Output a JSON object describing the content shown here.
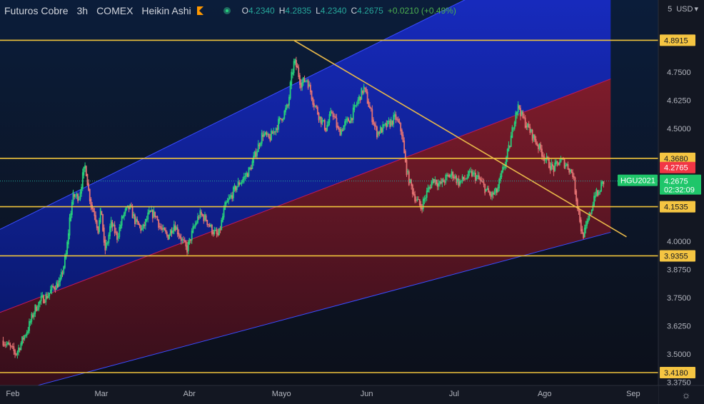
{
  "header": {
    "symbol": "Futuros Cobre",
    "interval": "3h",
    "exchange": "COMEX",
    "chart_style": "Heikin Ashi",
    "ohlc": {
      "o_label": "O",
      "o_value": "4.2340",
      "h_label": "H",
      "h_value": "4.2835",
      "l_label": "L",
      "l_value": "4.2340",
      "c_label": "C",
      "c_value": "4.2675",
      "change": "+0.0210 (+0.49%)"
    }
  },
  "currency": {
    "tick": "5",
    "label": "USD",
    "chevron": "▾"
  },
  "colors": {
    "background": "#131722",
    "up_candle": "#26d07c",
    "down_candle": "#e57373",
    "horizontal_line": "#f0c33c",
    "trend_line": "#e8b84a",
    "channel_upper": "#1b2fd6",
    "channel_lower": "#8b1c2a",
    "price_tag": "#f5c542",
    "current_price_tag": "#1fc66a",
    "last_price_tag": "#f23645"
  },
  "chart_data": {
    "type": "candlestick",
    "style": "Heikin Ashi",
    "y_axis": {
      "min": 3.375,
      "max": 5.0,
      "tick_labels": [
        "4.7500",
        "4.6250",
        "4.5000",
        "4.0000",
        "3.8750",
        "3.7500",
        "3.6250",
        "3.5000",
        "3.3750"
      ],
      "tick_values": [
        4.75,
        4.625,
        4.5,
        4.0,
        3.875,
        3.75,
        3.625,
        3.5,
        3.375
      ]
    },
    "x_axis": {
      "labels": [
        "Feb",
        "Mar",
        "Abr",
        "Mayo",
        "Jun",
        "Jul",
        "Ago",
        "Sep"
      ],
      "label_days": [
        0,
        28,
        56,
        84,
        112,
        140,
        168,
        196
      ]
    },
    "horizontal_levels": [
      {
        "value": 4.8915,
        "label": "4.8915"
      },
      {
        "value": 4.368,
        "label": "4.3680"
      },
      {
        "value": 4.1535,
        "label": "4.1535"
      },
      {
        "value": 3.9355,
        "label": "3.9355"
      },
      {
        "value": 3.418,
        "label": "3.4180"
      }
    ],
    "trend_line": {
      "from": {
        "day": 92,
        "value": 4.89
      },
      "to": {
        "day": 197,
        "value": 4.02
      }
    },
    "channel": {
      "upper": {
        "from": {
          "day": 0,
          "value": 4.06
        },
        "to": {
          "day": 192,
          "value": 5.39
        }
      },
      "mid": {
        "from": {
          "day": 0,
          "value": 3.69
        },
        "to": {
          "day": 192,
          "value": 4.72
        }
      },
      "lower": {
        "from": {
          "day": 0,
          "value": 3.32
        },
        "to": {
          "day": 192,
          "value": 4.04
        }
      },
      "end_day": 192
    },
    "current_price": {
      "value": 4.2675,
      "label": "4.2675",
      "symbol": "HGU2021",
      "countdown": "02:32:09"
    },
    "last_price": {
      "value": 4.2765,
      "label": "4.2765"
    },
    "price_path": [
      [
        0,
        3.56
      ],
      [
        2,
        3.53
      ],
      [
        4,
        3.5
      ],
      [
        6,
        3.56
      ],
      [
        8,
        3.62
      ],
      [
        10,
        3.7
      ],
      [
        12,
        3.74
      ],
      [
        14,
        3.76
      ],
      [
        16,
        3.8
      ],
      [
        18,
        3.82
      ],
      [
        20,
        3.95
      ],
      [
        21,
        4.1
      ],
      [
        22,
        4.2
      ],
      [
        24,
        4.2
      ],
      [
        25,
        4.28
      ],
      [
        26,
        4.34
      ],
      [
        27,
        4.22
      ],
      [
        28,
        4.15
      ],
      [
        29,
        4.12
      ],
      [
        30,
        4.05
      ],
      [
        31,
        4.15
      ],
      [
        32,
        3.95
      ],
      [
        33,
        4.0
      ],
      [
        34,
        4.08
      ],
      [
        35,
        4.05
      ],
      [
        36,
        4.02
      ],
      [
        38,
        4.12
      ],
      [
        40,
        4.15
      ],
      [
        42,
        4.08
      ],
      [
        44,
        4.05
      ],
      [
        46,
        4.12
      ],
      [
        48,
        4.12
      ],
      [
        50,
        4.05
      ],
      [
        52,
        4.02
      ],
      [
        54,
        4.08
      ],
      [
        56,
        4.02
      ],
      [
        58,
        3.96
      ],
      [
        60,
        4.05
      ],
      [
        62,
        4.12
      ],
      [
        64,
        4.1
      ],
      [
        66,
        4.05
      ],
      [
        68,
        4.02
      ],
      [
        70,
        4.15
      ],
      [
        72,
        4.2
      ],
      [
        74,
        4.25
      ],
      [
        76,
        4.28
      ],
      [
        78,
        4.32
      ],
      [
        80,
        4.4
      ],
      [
        82,
        4.48
      ],
      [
        84,
        4.45
      ],
      [
        86,
        4.5
      ],
      [
        88,
        4.55
      ],
      [
        90,
        4.6
      ],
      [
        91,
        4.72
      ],
      [
        92,
        4.8
      ],
      [
        93,
        4.76
      ],
      [
        94,
        4.7
      ],
      [
        96,
        4.72
      ],
      [
        98,
        4.62
      ],
      [
        100,
        4.55
      ],
      [
        102,
        4.5
      ],
      [
        104,
        4.58
      ],
      [
        106,
        4.48
      ],
      [
        108,
        4.52
      ],
      [
        110,
        4.55
      ],
      [
        112,
        4.62
      ],
      [
        114,
        4.68
      ],
      [
        116,
        4.58
      ],
      [
        118,
        4.48
      ],
      [
        120,
        4.5
      ],
      [
        122,
        4.52
      ],
      [
        124,
        4.55
      ],
      [
        126,
        4.48
      ],
      [
        127,
        4.35
      ],
      [
        128,
        4.28
      ],
      [
        130,
        4.2
      ],
      [
        132,
        4.15
      ],
      [
        134,
        4.22
      ],
      [
        136,
        4.28
      ],
      [
        138,
        4.25
      ],
      [
        140,
        4.28
      ],
      [
        142,
        4.3
      ],
      [
        144,
        4.26
      ],
      [
        146,
        4.28
      ],
      [
        148,
        4.3
      ],
      [
        150,
        4.28
      ],
      [
        152,
        4.24
      ],
      [
        154,
        4.2
      ],
      [
        156,
        4.22
      ],
      [
        158,
        4.32
      ],
      [
        160,
        4.42
      ],
      [
        162,
        4.58
      ],
      [
        163,
        4.6
      ],
      [
        164,
        4.55
      ],
      [
        166,
        4.5
      ],
      [
        168,
        4.45
      ],
      [
        170,
        4.4
      ],
      [
        172,
        4.35
      ],
      [
        174,
        4.32
      ],
      [
        176,
        4.36
      ],
      [
        178,
        4.34
      ],
      [
        180,
        4.3
      ],
      [
        181,
        4.2
      ],
      [
        182,
        4.12
      ],
      [
        183,
        4.02
      ],
      [
        184,
        4.05
      ],
      [
        186,
        4.15
      ],
      [
        187,
        4.22
      ],
      [
        188,
        4.2
      ],
      [
        189,
        4.25
      ],
      [
        190,
        4.2675
      ]
    ]
  }
}
